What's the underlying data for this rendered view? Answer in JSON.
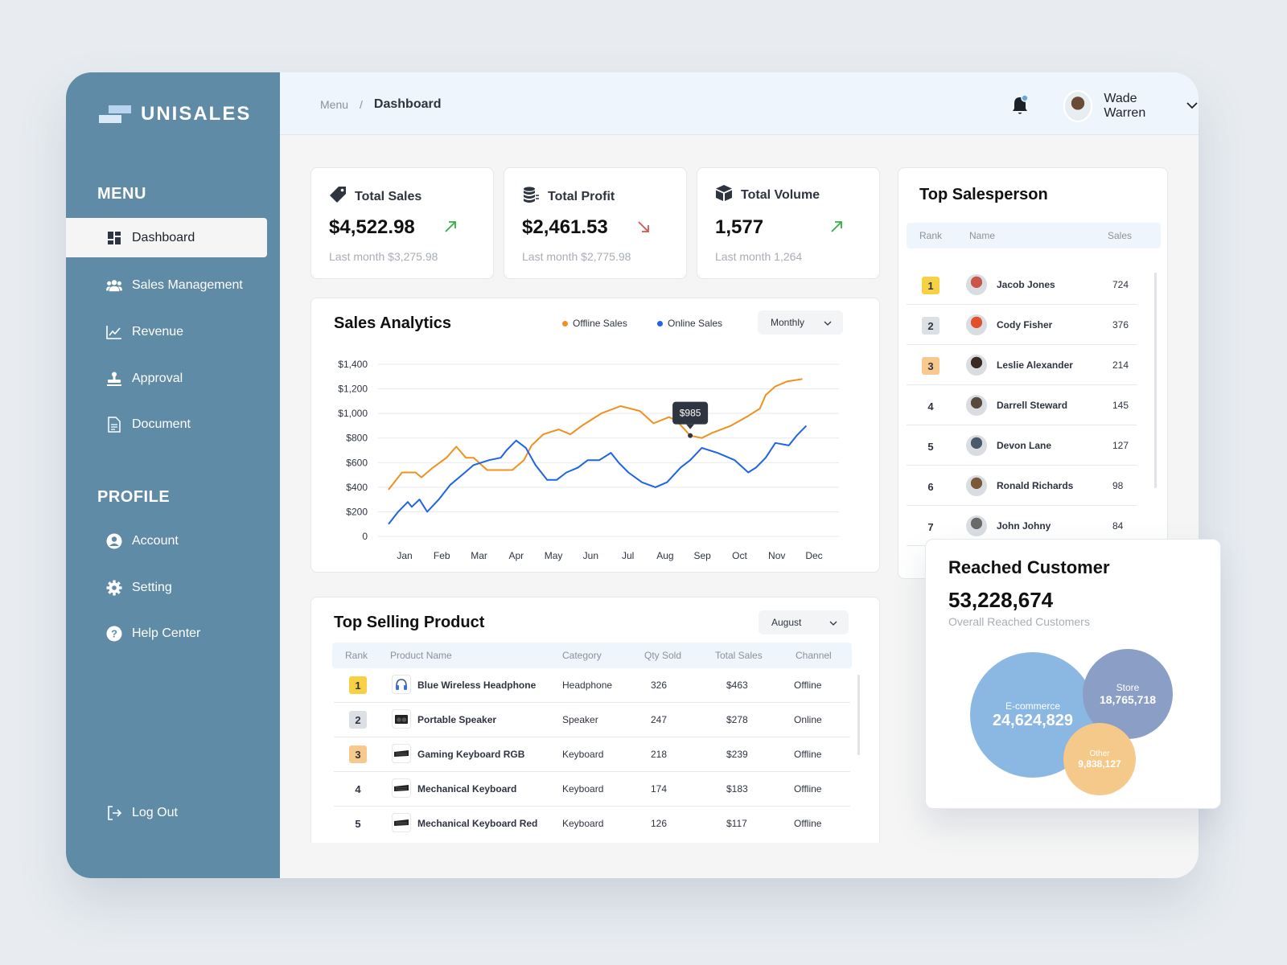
{
  "app": {
    "name": "UNISALES"
  },
  "sidebar": {
    "menu_title": "MENU",
    "menu_items": [
      {
        "label": "Dashboard",
        "icon": "grid-icon",
        "active": true
      },
      {
        "label": "Sales Management",
        "icon": "users-icon"
      },
      {
        "label": "Revenue",
        "icon": "line-chart-icon"
      },
      {
        "label": "Approval",
        "icon": "stamp-icon"
      },
      {
        "label": "Document",
        "icon": "document-icon"
      }
    ],
    "profile_title": "PROFILE",
    "profile_items": [
      {
        "label": "Account",
        "icon": "account-icon"
      },
      {
        "label": "Setting",
        "icon": "gear-icon"
      },
      {
        "label": "Help Center",
        "icon": "help-icon"
      }
    ],
    "logout_label": "Log Out"
  },
  "header": {
    "breadcrumb_root": "Menu",
    "breadcrumb_sep": "/",
    "breadcrumb_current": "Dashboard",
    "user_name": "Wade Warren"
  },
  "stats": [
    {
      "title": "Total Sales",
      "value": "$4,522.98",
      "trend": "up",
      "last": "Last month $3,275.98"
    },
    {
      "title": "Total Profit",
      "value": "$2,461.53",
      "trend": "down",
      "last": "Last month $2,775.98"
    },
    {
      "title": "Total Volume",
      "value": "1,577",
      "trend": "up",
      "last": "Last month 1,264"
    }
  ],
  "colors": {
    "offline": "#f0901e",
    "online": "#1f63e6",
    "up": "#2fb344",
    "down": "#d9534f",
    "gold": "#f7d043",
    "silver": "#dcdfe3",
    "bronze": "#f8c98c"
  },
  "analytics": {
    "title": "Sales Analytics",
    "legend_offline": "Offline Sales",
    "legend_online": "Online Sales",
    "period": "Monthly",
    "tooltip": "$985"
  },
  "chart_data": {
    "type": "line",
    "categories": [
      "Jan",
      "Feb",
      "Mar",
      "Apr",
      "May",
      "Jun",
      "Jul",
      "Aug",
      "Sep",
      "Oct",
      "Nov",
      "Dec"
    ],
    "y_ticks": [
      "0",
      "$200",
      "$400",
      "$600",
      "$800",
      "$1,000",
      "$1,200",
      "$1,400"
    ],
    "ylim": [
      0,
      1400
    ],
    "grid": true,
    "legend_position": "top-right",
    "series": [
      {
        "name": "Offline Sales",
        "color": "#f0901e",
        "x": [
          0.0,
          0.35,
          0.7,
          0.85,
          1.15,
          1.5,
          1.75,
          2.0,
          2.2,
          2.55,
          2.8,
          3.2,
          3.5,
          3.7,
          4.0,
          4.4,
          4.7,
          5.0,
          5.5,
          6.0,
          6.5,
          6.85,
          7.25,
          7.45,
          7.8,
          8.1,
          8.35,
          8.85,
          9.3,
          9.6,
          9.75,
          10.0,
          10.3,
          10.7
        ],
        "y": [
          380,
          520,
          520,
          480,
          560,
          640,
          730,
          640,
          640,
          540,
          540,
          540,
          620,
          740,
          830,
          870,
          830,
          900,
          1000,
          1060,
          1020,
          920,
          970,
          940,
          820,
          800,
          840,
          900,
          980,
          1040,
          1150,
          1220,
          1260,
          1280
        ]
      },
      {
        "name": "Online Sales",
        "color": "#1f63e6",
        "x": [
          0.0,
          0.25,
          0.5,
          0.6,
          0.8,
          1.0,
          1.3,
          1.6,
          1.9,
          2.2,
          2.6,
          2.9,
          3.05,
          3.3,
          3.55,
          3.8,
          4.1,
          4.35,
          4.6,
          4.9,
          5.15,
          5.45,
          5.75,
          5.95,
          6.2,
          6.55,
          6.9,
          7.2,
          7.55,
          7.8,
          8.1,
          8.5,
          8.95,
          9.3,
          9.5,
          9.75,
          10.0,
          10.35,
          10.55,
          10.8
        ],
        "y": [
          100,
          200,
          280,
          240,
          300,
          200,
          300,
          420,
          500,
          580,
          620,
          640,
          700,
          780,
          720,
          580,
          460,
          460,
          520,
          560,
          620,
          620,
          680,
          600,
          520,
          440,
          400,
          440,
          560,
          620,
          720,
          680,
          620,
          520,
          560,
          640,
          760,
          740,
          820,
          900
        ]
      }
    ]
  },
  "products": {
    "title": "Top Selling Product",
    "period": "August",
    "columns": [
      "Rank",
      "Product Name",
      "Category",
      "Qty Sold",
      "Total Sales",
      "Channel"
    ],
    "rows": [
      {
        "rank": "1",
        "name": "Blue Wireless Headphone",
        "category": "Headphone",
        "qty": "326",
        "total": "$463",
        "channel": "Offline",
        "icon": "headphone-icon"
      },
      {
        "rank": "2",
        "name": "Portable Speaker",
        "category": "Speaker",
        "qty": "247",
        "total": "$278",
        "channel": "Online",
        "icon": "speaker-icon"
      },
      {
        "rank": "3",
        "name": "Gaming Keyboard RGB",
        "category": "Keyboard",
        "qty": "218",
        "total": "$239",
        "channel": "Offline",
        "icon": "keyboard-icon"
      },
      {
        "rank": "4",
        "name": "Mechanical Keyboard",
        "category": "Keyboard",
        "qty": "174",
        "total": "$183",
        "channel": "Offline",
        "icon": "keyboard-icon"
      },
      {
        "rank": "5",
        "name": "Mechanical Keyboard Red",
        "category": "Keyboard",
        "qty": "126",
        "total": "$117",
        "channel": "Offline",
        "icon": "keyboard-icon"
      }
    ]
  },
  "salespersons": {
    "title": "Top Salesperson",
    "columns": [
      "Rank",
      "Name",
      "Sales"
    ],
    "rows": [
      {
        "rank": "1",
        "name": "Jacob Jones",
        "sales": "724"
      },
      {
        "rank": "2",
        "name": "Cody Fisher",
        "sales": "376"
      },
      {
        "rank": "3",
        "name": "Leslie Alexander",
        "sales": "214"
      },
      {
        "rank": "4",
        "name": "Darrell Steward",
        "sales": "145"
      },
      {
        "rank": "5",
        "name": "Devon Lane",
        "sales": "127"
      },
      {
        "rank": "6",
        "name": "Ronald Richards",
        "sales": "98"
      },
      {
        "rank": "7",
        "name": "John Johny",
        "sales": "84"
      }
    ]
  },
  "reached": {
    "title": "Reached Customer",
    "total": "53,228,674",
    "subtitle": "Overall Reached Customers",
    "segments": [
      {
        "label": "E-commerce",
        "value": "24,624,829",
        "color": "#8ab8e3"
      },
      {
        "label": "Store",
        "value": "18,765,718",
        "color": "#8b9fc6"
      },
      {
        "label": "Other",
        "value": "9,838,127",
        "color": "#f5c98a"
      }
    ]
  }
}
